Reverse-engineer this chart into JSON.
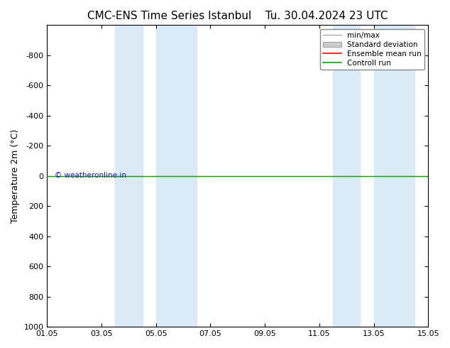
{
  "title_left": "CMC-ENS Time Series Istanbul",
  "title_right": "Tu. 30.04.2024 23 UTC",
  "ylabel": "Temperature 2m (°C)",
  "ylim_top": -1000,
  "ylim_bottom": 1000,
  "yticks": [
    -800,
    -600,
    -400,
    -200,
    0,
    200,
    400,
    600,
    800,
    1000
  ],
  "xlim_start": 0,
  "xlim_end": 14,
  "xtick_labels": [
    "01.05",
    "03.05",
    "05.05",
    "07.05",
    "09.05",
    "11.05",
    "13.05",
    "15.05"
  ],
  "xtick_positions": [
    0,
    2,
    4,
    6,
    8,
    10,
    12,
    14
  ],
  "shaded_bands": [
    [
      2.5,
      3.5
    ],
    [
      4.0,
      5.5
    ],
    [
      10.5,
      11.5
    ],
    [
      12.0,
      13.5
    ]
  ],
  "shade_color": "#daeaf7",
  "control_run_color": "#00aa00",
  "ensemble_mean_color": "#ff0000",
  "flat_line_value": 0.0,
  "watermark": "© weatheronline.in",
  "watermark_color": "#0000cc",
  "bg_color": "#ffffff",
  "title_fontsize": 11,
  "axis_fontsize": 9,
  "tick_fontsize": 8,
  "legend_fontsize": 7.5
}
